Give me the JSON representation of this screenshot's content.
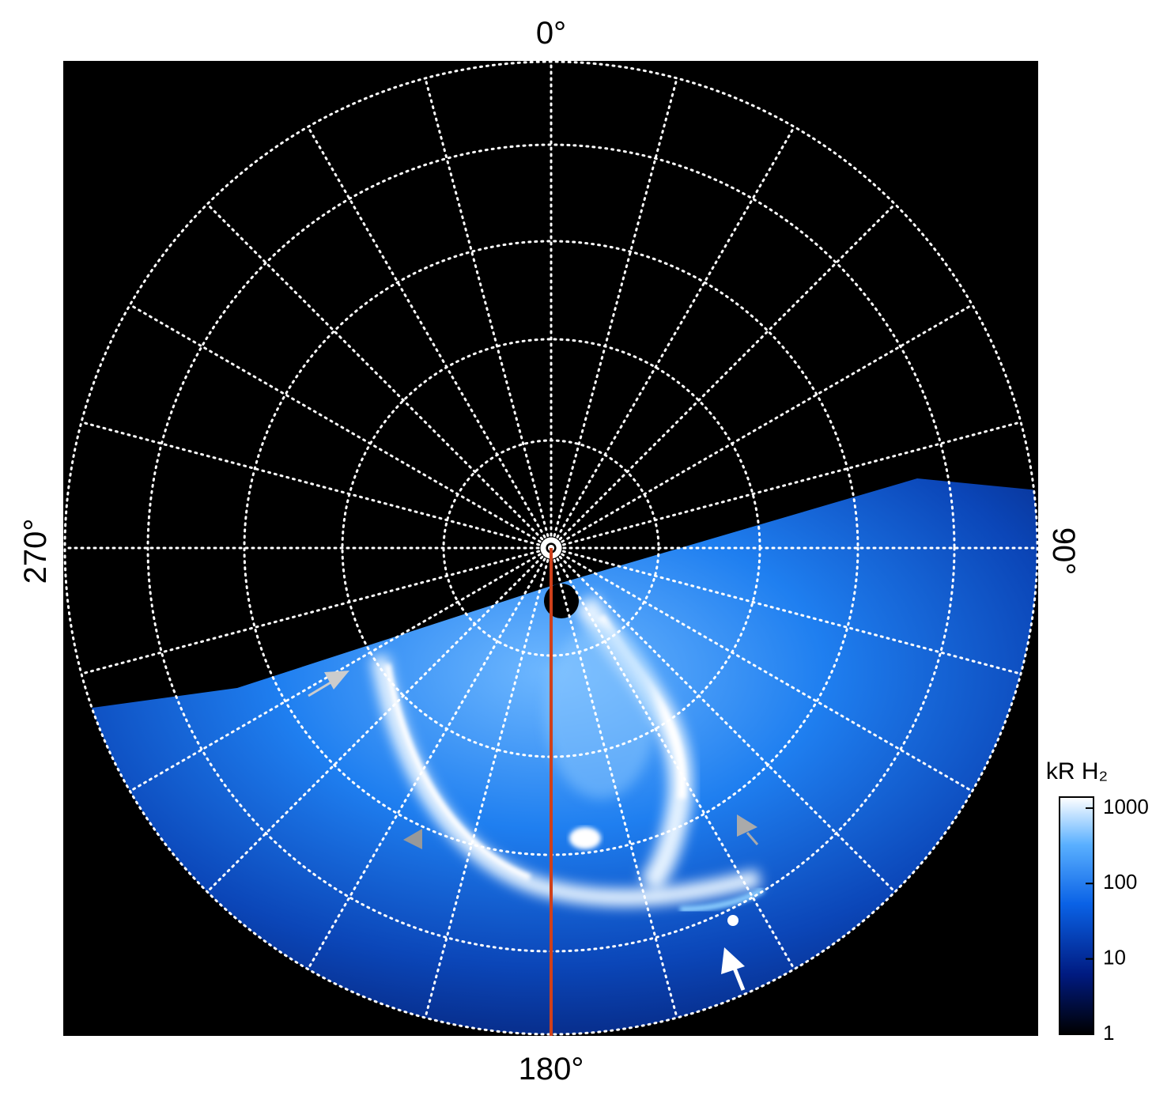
{
  "labels": {
    "top": "0°",
    "right": "90°",
    "bottom": "180°",
    "left": "270°"
  },
  "colorbar": {
    "title": "kR H₂",
    "scale": "log",
    "lim": [
      1,
      1400
    ],
    "ticks": [
      1,
      10,
      100,
      1000
    ]
  }
}
